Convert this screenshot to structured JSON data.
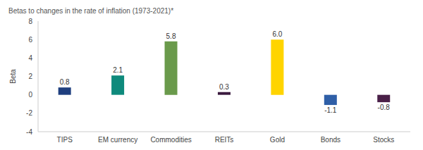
{
  "chart_data": {
    "type": "bar",
    "title": "Betas to changes in the rate of inflation (1973-2021)*",
    "y_label": "Beta",
    "categories": [
      "TIPS",
      "EM currency",
      "Commodities",
      "REITs",
      "Gold",
      "Bonds",
      "Stocks"
    ],
    "values": [
      0.8,
      2.1,
      5.8,
      0.3,
      6.0,
      -1.1,
      -0.8
    ],
    "value_labels": [
      "0.8",
      "2.1",
      "5.8",
      "0.3",
      "6.0",
      "-1.1",
      "-0.8"
    ],
    "colors": [
      "#1f3f7f",
      "#0e8a7c",
      "#6a9a4b",
      "#3a1a3e",
      "#ffd400",
      "#2f5fa7",
      "#4a2048"
    ],
    "ylim": [
      -4,
      8
    ],
    "yticks": [
      -4,
      -2,
      0,
      2,
      4,
      6,
      8
    ],
    "grid": false,
    "data_labels": true
  }
}
